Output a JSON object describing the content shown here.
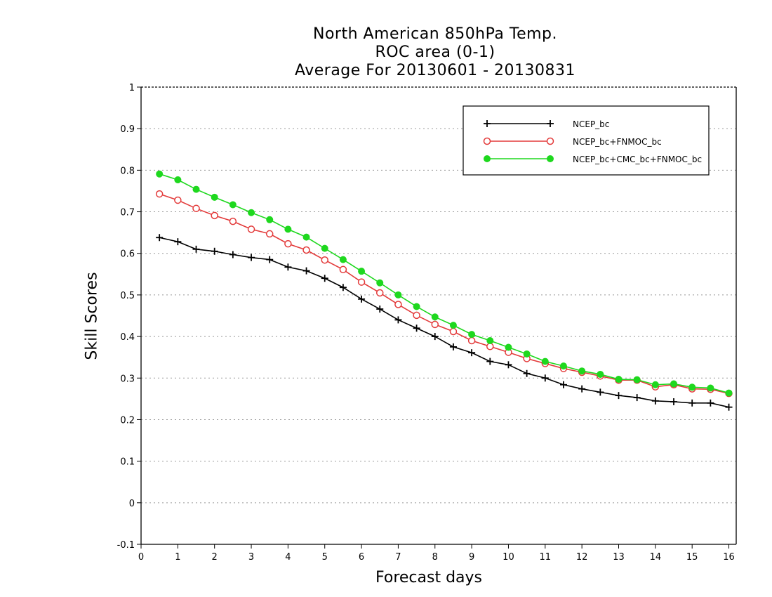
{
  "chart_data": {
    "type": "line",
    "title": [
      "North American 850hPa Temp.",
      "ROC area (0-1)",
      "Average For 20130601 - 20130831"
    ],
    "xlabel": "Forecast days",
    "ylabel": "Skill Scores",
    "xlim": [
      0,
      16.2
    ],
    "ylim": [
      -0.1,
      1
    ],
    "xticks": [
      0,
      1,
      2,
      3,
      4,
      5,
      6,
      7,
      8,
      9,
      10,
      11,
      12,
      13,
      14,
      15,
      16
    ],
    "xtick_labels": [
      "0",
      "1",
      "2",
      "3",
      "4",
      "5",
      "6",
      "7",
      "8",
      "9",
      "10",
      "11",
      "12",
      "13",
      "14",
      "15",
      "16"
    ],
    "yticks": [
      -0.1,
      0,
      0.1,
      0.2,
      0.3,
      0.4,
      0.5,
      0.6,
      0.7,
      0.8,
      0.9,
      1
    ],
    "ytick_labels": [
      "-0.1",
      "0",
      "0.1",
      "0.2",
      "0.3",
      "0.4",
      "0.5",
      "0.6",
      "0.7",
      "0.8",
      "0.9",
      "1"
    ],
    "grid": true,
    "legend_position": "top-right",
    "x": [
      0.5,
      1.0,
      1.5,
      2.0,
      2.5,
      3.0,
      3.5,
      4.0,
      4.5,
      5.0,
      5.5,
      6.0,
      6.5,
      7.0,
      7.5,
      8.0,
      8.5,
      9.0,
      9.5,
      10.0,
      10.5,
      11.0,
      11.5,
      12.0,
      12.5,
      13.0,
      13.5,
      14.0,
      14.5,
      15.0,
      15.5,
      16.0
    ],
    "series": [
      {
        "name": "NCEP_bc",
        "color": "#000000",
        "marker": "plus",
        "values": [
          0.638,
          0.628,
          0.61,
          0.605,
          0.597,
          0.59,
          0.585,
          0.567,
          0.558,
          0.54,
          0.518,
          0.49,
          0.466,
          0.44,
          0.42,
          0.4,
          0.375,
          0.361,
          0.34,
          0.332,
          0.311,
          0.3,
          0.284,
          0.274,
          0.266,
          0.258,
          0.253,
          0.245,
          0.243,
          0.24,
          0.24,
          0.23
        ]
      },
      {
        "name": "NCEP_bc+FNMOC_bc",
        "color": "#e33a3a",
        "marker": "open-circle",
        "values": [
          0.743,
          0.728,
          0.708,
          0.691,
          0.677,
          0.658,
          0.647,
          0.623,
          0.608,
          0.584,
          0.561,
          0.531,
          0.505,
          0.477,
          0.451,
          0.429,
          0.412,
          0.39,
          0.376,
          0.362,
          0.347,
          0.335,
          0.323,
          0.314,
          0.305,
          0.295,
          0.295,
          0.279,
          0.284,
          0.274,
          0.273,
          0.263
        ]
      },
      {
        "name": "NCEP_bc+CMC_bc+FNMOC_bc",
        "color": "#1ed81e",
        "marker": "filled-circle",
        "values": [
          0.791,
          0.777,
          0.754,
          0.735,
          0.717,
          0.698,
          0.681,
          0.658,
          0.639,
          0.612,
          0.585,
          0.557,
          0.529,
          0.5,
          0.472,
          0.447,
          0.427,
          0.405,
          0.39,
          0.374,
          0.358,
          0.34,
          0.329,
          0.317,
          0.309,
          0.297,
          0.296,
          0.284,
          0.286,
          0.278,
          0.276,
          0.264
        ]
      }
    ]
  }
}
